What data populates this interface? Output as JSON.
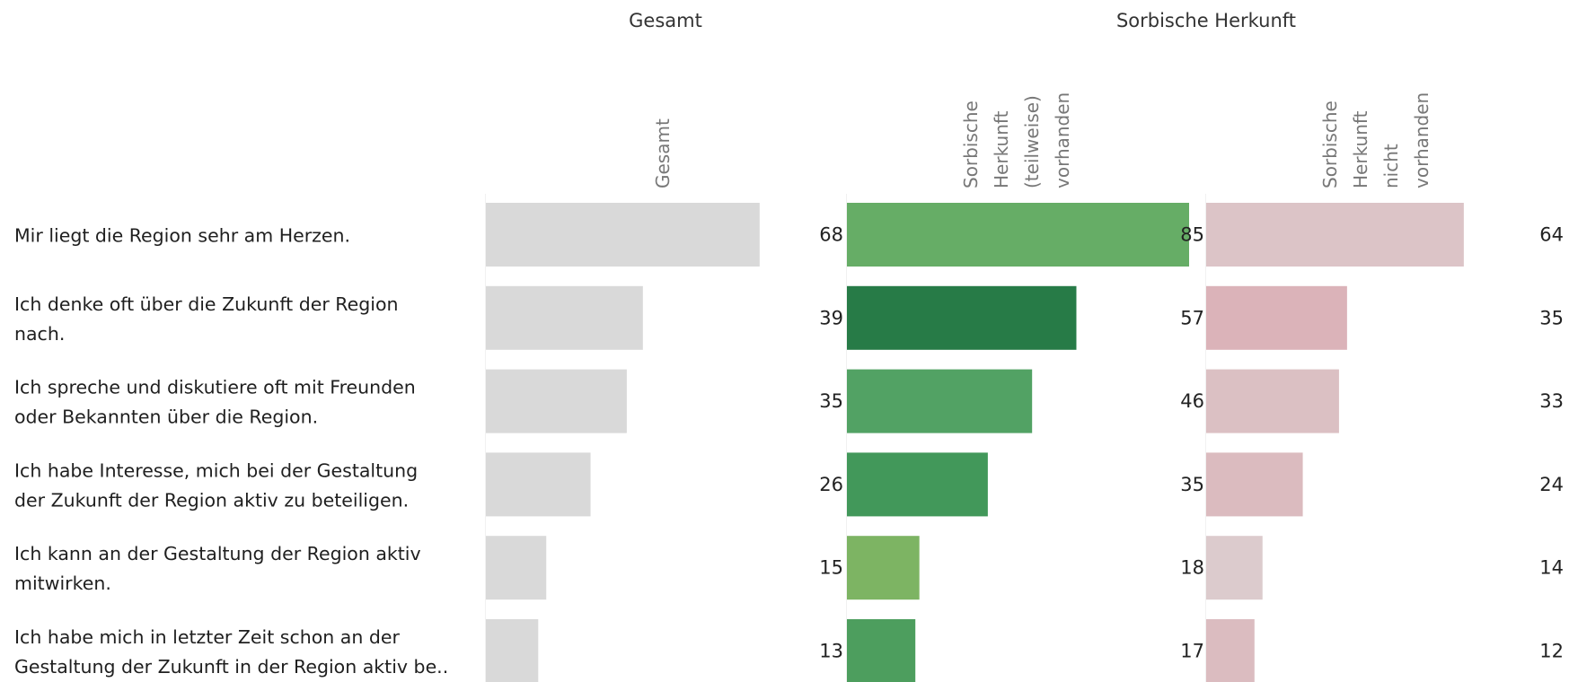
{
  "chart_data": {
    "type": "bar",
    "orientation": "horizontal",
    "groups": [
      {
        "title": "Gesamt",
        "columns": [
          "Gesamt"
        ]
      },
      {
        "title": "Sorbische Herkunft",
        "columns": [
          "Sorbische Herkunft (teilweise) vorhanden",
          "Sorbische Herkunft nicht vorhanden"
        ]
      }
    ],
    "column_header_lines": [
      [
        "Gesamt"
      ],
      [
        "Sorbische",
        "Herkunft",
        "(teilweise)",
        "vorhanden"
      ],
      [
        "Sorbische",
        "Herkunft",
        "nicht",
        "vorhanden"
      ]
    ],
    "categories": [
      [
        "Mir liegt die Region sehr am Herzen."
      ],
      [
        "Ich denke oft über die Zukunft der Region",
        "nach."
      ],
      [
        "Ich spreche und diskutiere oft mit Freunden",
        "oder Bekannten über die Region."
      ],
      [
        "Ich habe Interesse, mich bei der Gestaltung",
        "der Zukunft der Region aktiv zu beteiligen."
      ],
      [
        "Ich kann an der Gestaltung der Region aktiv",
        "mitwirken."
      ],
      [
        "Ich habe mich in letzter Zeit schon an der",
        "Gestaltung der Zukunft in der Region aktiv be.."
      ]
    ],
    "series": [
      {
        "name": "Gesamt",
        "values": [
          68,
          39,
          35,
          26,
          15,
          13
        ]
      },
      {
        "name": "Sorbische Herkunft (teilweise) vorhanden",
        "values": [
          85,
          57,
          46,
          35,
          18,
          17
        ]
      },
      {
        "name": "Sorbische Herkunft nicht vorhanden",
        "values": [
          64,
          35,
          33,
          24,
          14,
          12
        ]
      }
    ],
    "bar_colors": [
      [
        "#d9d9d9",
        "#d9d9d9",
        "#d9d9d9",
        "#d9d9d9",
        "#d9d9d9",
        "#d9d9d9"
      ],
      [
        "#66ad66",
        "#277b47",
        "#52a264",
        "#42985a",
        "#7db463",
        "#4d9e5e"
      ],
      [
        "#dcc4c7",
        "#dbb3b9",
        "#dbc0c3",
        "#dbbbbf",
        "#dccbcd",
        "#dbbcc0"
      ]
    ],
    "xlim": [
      0,
      85
    ],
    "grid": false,
    "legend": "none"
  }
}
